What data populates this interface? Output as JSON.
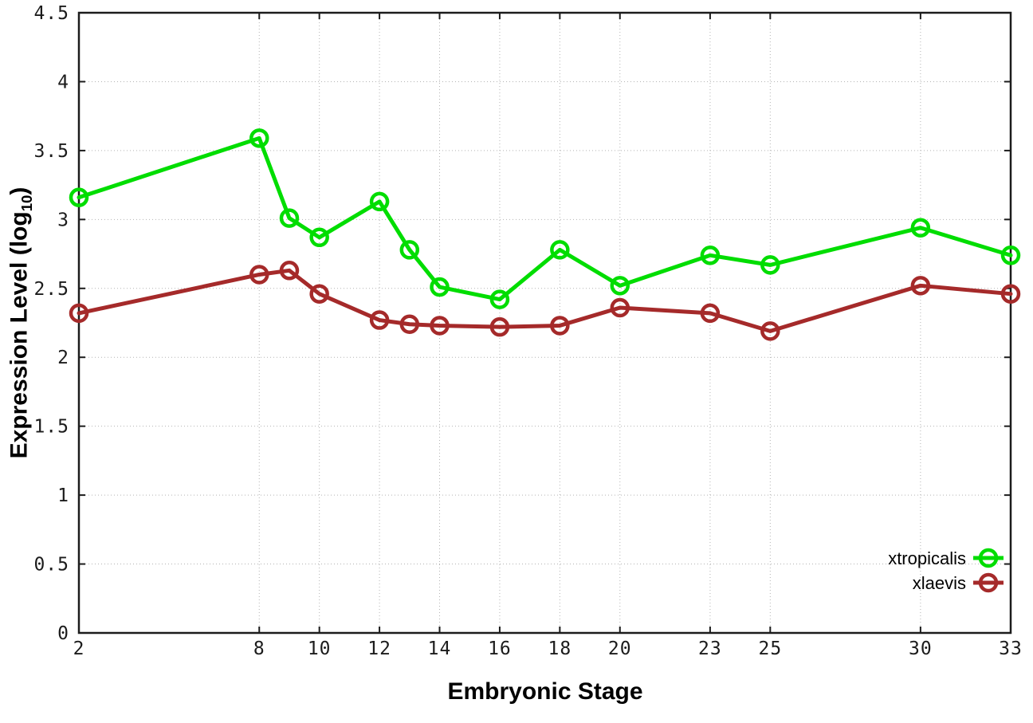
{
  "chart_data": {
    "type": "line",
    "title": "",
    "xlabel": "Embryonic Stage",
    "ylabel": "Expression Level (log10)",
    "ylabel_parts": {
      "prefix": "Expression Level (log",
      "sub": "10",
      "suffix": ")"
    },
    "xlim": [
      2,
      33
    ],
    "ylim": [
      0,
      4.5
    ],
    "xticks": [
      2,
      8,
      10,
      12,
      14,
      16,
      18,
      20,
      23,
      25,
      30,
      33
    ],
    "yticks": [
      0,
      0.5,
      1,
      1.5,
      2,
      2.5,
      3,
      3.5,
      4,
      4.5
    ],
    "grid": true,
    "legend_position": "inside-bottom-right",
    "x": [
      2,
      8,
      9,
      10,
      12,
      13,
      14,
      16,
      18,
      20,
      23,
      25,
      30,
      33
    ],
    "series": [
      {
        "name": "xtropicalis",
        "color": "#00dd00",
        "values": [
          3.16,
          3.59,
          3.01,
          2.87,
          3.13,
          2.78,
          2.51,
          2.42,
          2.78,
          2.52,
          2.74,
          2.67,
          2.94,
          2.74
        ]
      },
      {
        "name": "xlaevis",
        "color": "#a52a2a",
        "values": [
          2.32,
          2.6,
          2.63,
          2.46,
          2.27,
          2.24,
          2.23,
          2.22,
          2.23,
          2.36,
          2.32,
          2.19,
          2.52,
          2.46
        ]
      }
    ]
  }
}
